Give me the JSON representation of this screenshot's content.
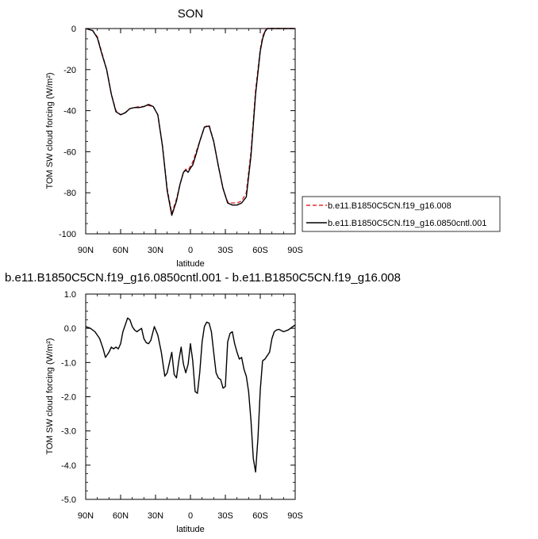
{
  "chart_data": [
    {
      "type": "line",
      "title": "SON",
      "xlabel": "latitude",
      "ylabel": "TOM SW cloud forcing (W/m²)",
      "ylim": [
        -100,
        0
      ],
      "yticks": [
        0,
        -20,
        -40,
        -60,
        -80,
        -100
      ],
      "ytick_labels": [
        "0",
        "-20",
        "-40",
        "-60",
        "-80",
        "-100"
      ],
      "xlim": [
        90,
        -90
      ],
      "xticks": [
        90,
        60,
        30,
        0,
        -30,
        -60,
        -90
      ],
      "xtick_labels": [
        "90N",
        "60N",
        "30N",
        "0",
        "30S",
        "60S",
        "90S"
      ],
      "legend": "right",
      "series": [
        {
          "name": "b.e11.B1850C5CN.f19_g16.008",
          "color": "#e8282d",
          "dash": true,
          "x": [
            90,
            84,
            80,
            76,
            72,
            68,
            64,
            60,
            56,
            52,
            48,
            44,
            40,
            36,
            32,
            28,
            24,
            20,
            16,
            12,
            9,
            6,
            4,
            2,
            0,
            -2,
            -5,
            -8,
            -12,
            -16,
            -20,
            -24,
            -28,
            -32,
            -36,
            -40,
            -44,
            -48,
            -52,
            -56,
            -60,
            -62,
            -64,
            -66,
            -68,
            -70,
            -74,
            -80,
            -90
          ],
          "y": [
            0,
            -1,
            -4,
            -12,
            -20,
            -32,
            -40,
            -42,
            -41,
            -39,
            -38.5,
            -38,
            -38,
            -37.5,
            -38,
            -42,
            -57,
            -78,
            -90,
            -83,
            -76,
            -70,
            -68.5,
            -69,
            -67,
            -65,
            -60,
            -55,
            -48,
            -47,
            -55,
            -67,
            -78,
            -84.5,
            -85,
            -85,
            -84,
            -80,
            -60,
            -30,
            -10,
            -4,
            -1,
            0,
            0,
            0,
            0,
            0,
            0
          ]
        },
        {
          "name": "b.e11.B1850C5CN.f19_g16.0850cntl.001",
          "color": "#000000",
          "dash": false,
          "x": [
            90,
            84,
            80,
            76,
            72,
            68,
            64,
            60,
            56,
            52,
            48,
            44,
            40,
            36,
            32,
            28,
            24,
            20,
            16,
            12,
            9,
            6,
            4,
            2,
            0,
            -2,
            -5,
            -8,
            -12,
            -16,
            -20,
            -24,
            -28,
            -32,
            -36,
            -40,
            -44,
            -48,
            -52,
            -56,
            -60,
            -62,
            -64,
            -66,
            -68,
            -70,
            -74,
            -80,
            -90
          ],
          "y": [
            0,
            -1,
            -4.5,
            -12.5,
            -20,
            -32,
            -40.5,
            -42,
            -41,
            -39,
            -38.5,
            -38.5,
            -38,
            -37,
            -38,
            -42,
            -57.5,
            -79,
            -91,
            -84,
            -76,
            -70,
            -69,
            -70,
            -68,
            -66.5,
            -61,
            -55,
            -48,
            -47.5,
            -55,
            -67,
            -78,
            -85,
            -86,
            -86,
            -85,
            -82,
            -62,
            -32,
            -11,
            -5,
            -1.5,
            0,
            0,
            0,
            0,
            0,
            0
          ]
        }
      ]
    },
    {
      "type": "line",
      "title": "b.e11.B1850C5CN.f19_g16.0850cntl.001 - b.e11.B1850C5CN.f19_g16.008",
      "xlabel": "latitude",
      "ylabel": "TOM SW cloud forcing (W/m²)",
      "ylim": [
        -5,
        1
      ],
      "yticks": [
        1,
        0,
        -1,
        -2,
        -3,
        -4,
        -5
      ],
      "ytick_labels": [
        "1.0",
        "0.0",
        "-1.0",
        "-2.0",
        "-3.0",
        "-4.0",
        "-5.0"
      ],
      "xlim": [
        90,
        -90
      ],
      "xticks": [
        90,
        60,
        30,
        0,
        -30,
        -60,
        -90
      ],
      "xtick_labels": [
        "90N",
        "60N",
        "30N",
        "0",
        "30S",
        "60S",
        "90S"
      ],
      "series": [
        {
          "color": "#000000",
          "dash": false,
          "x": [
            90,
            86,
            82,
            78,
            75,
            73,
            70,
            68,
            66,
            64,
            62,
            60,
            58,
            56,
            54,
            52,
            50,
            48,
            46,
            44,
            42,
            40,
            38,
            36,
            34,
            31,
            28,
            25,
            22,
            20,
            18,
            16,
            14,
            12,
            10,
            8,
            7,
            6,
            4,
            2,
            0,
            -2,
            -4,
            -6,
            -8,
            -10,
            -12,
            -14,
            -16,
            -18,
            -20,
            -22,
            -24,
            -26,
            -28,
            -30,
            -32,
            -34,
            -36,
            -38,
            -40,
            -42,
            -44,
            -46,
            -48,
            -50,
            -52,
            -54,
            -56,
            -58,
            -60,
            -62,
            -64,
            -66,
            -68,
            -70,
            -72,
            -74,
            -76,
            -80,
            -84,
            -88,
            -90
          ],
          "y": [
            0.05,
            0.0,
            -0.1,
            -0.3,
            -0.6,
            -0.85,
            -0.7,
            -0.55,
            -0.6,
            -0.55,
            -0.6,
            -0.45,
            -0.1,
            0.1,
            0.3,
            0.25,
            0.05,
            -0.05,
            -0.1,
            -0.05,
            0.0,
            -0.3,
            -0.42,
            -0.45,
            -0.35,
            0.05,
            -0.2,
            -0.7,
            -1.4,
            -1.3,
            -1.0,
            -0.7,
            -1.35,
            -1.45,
            -0.95,
            -0.55,
            -0.8,
            -1.05,
            -1.3,
            -1.05,
            -0.45,
            -0.95,
            -1.85,
            -1.9,
            -1.3,
            -0.4,
            0.05,
            0.18,
            0.15,
            -0.1,
            -0.7,
            -1.3,
            -1.45,
            -1.5,
            -1.75,
            -1.7,
            -0.4,
            -0.15,
            -0.1,
            -0.45,
            -0.7,
            -0.9,
            -0.85,
            -1.2,
            -1.4,
            -1.85,
            -2.7,
            -3.8,
            -4.2,
            -3.2,
            -1.8,
            -0.95,
            -0.9,
            -0.8,
            -0.7,
            -0.3,
            -0.1,
            -0.05,
            -0.03,
            -0.1,
            -0.05,
            0.05,
            0.1
          ]
        }
      ]
    }
  ]
}
